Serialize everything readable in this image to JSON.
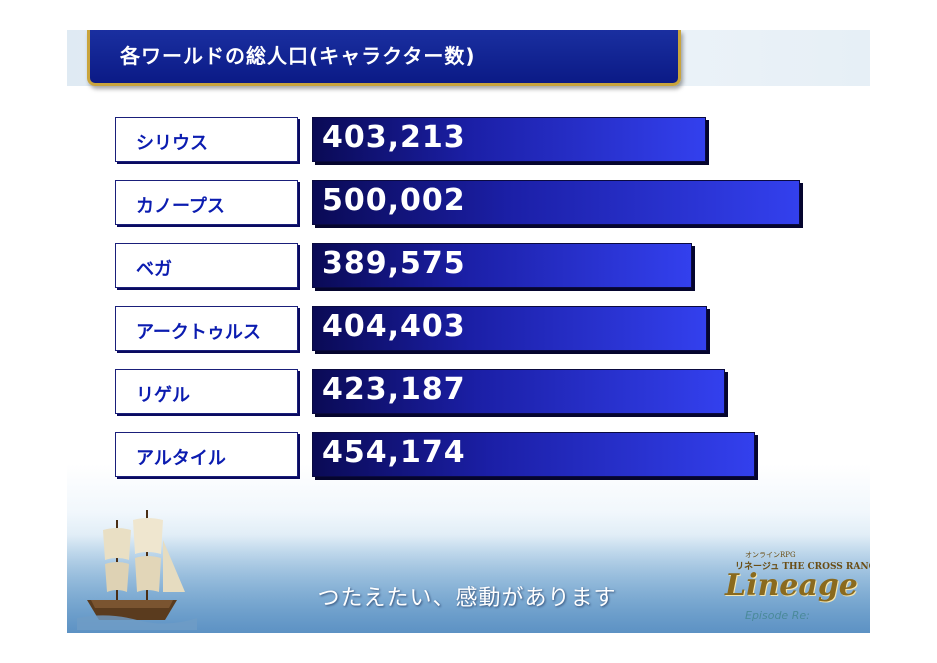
{
  "slide": {
    "title": "各ワールドの総人口(キャラクター数)",
    "tagline": "つたえたい、感動があります",
    "logo": {
      "top_text": "オンラインRPG",
      "sub_text": "リネージュ THE CROSS RANCOR",
      "main_text": "Lineage",
      "episode_text": "Episode Re:"
    }
  },
  "chart_data": {
    "type": "bar",
    "orientation": "horizontal",
    "title": "各ワールドの総人口(キャラクター数)",
    "categories": [
      "シリウス",
      "カノープス",
      "ベガ",
      "アークトゥルス",
      "リゲル",
      "アルタイル"
    ],
    "values": [
      403213,
      500002,
      389575,
      404403,
      423187,
      454174
    ],
    "value_labels": [
      "403,213",
      "500,002",
      "389,575",
      "404,403",
      "423,187",
      "454,174"
    ],
    "xlim": [
      0,
      500002
    ],
    "grid": false,
    "legend": "none",
    "colors": {
      "bar": "#1b1fa6",
      "bar_light": "#3340ee",
      "label_text": "#0b1cb0",
      "title_bg": "#0b1a86",
      "title_border": "#c9a43c"
    }
  }
}
